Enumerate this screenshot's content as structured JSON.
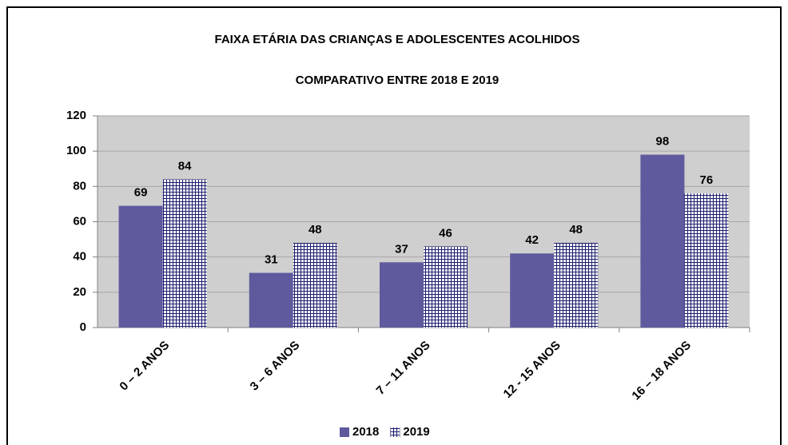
{
  "chart_data": {
    "type": "bar",
    "title": "FAIXA ETÁRIA DAS CRIANÇAS E ADOLESCENTES ACOLHIDOS",
    "subtitle": "COMPARATIVO ENTRE 2018 E 2019",
    "categories": [
      "0 – 2 ANOS",
      "3 – 6 ANOS",
      "7 – 11 ANOS",
      "12 - 15 ANOS",
      "16 – 18 ANOS"
    ],
    "series": [
      {
        "name": "2018",
        "color": "#5f5a9e",
        "values": [
          69,
          31,
          37,
          42,
          98
        ]
      },
      {
        "name": "2019",
        "color": "#1c1c6e",
        "pattern": "grid",
        "values": [
          84,
          48,
          46,
          48,
          76
        ]
      }
    ],
    "ylim": [
      0,
      120
    ],
    "yticks": [
      0,
      20,
      40,
      60,
      80,
      100,
      120
    ],
    "grid": true,
    "legend": "bottom"
  }
}
